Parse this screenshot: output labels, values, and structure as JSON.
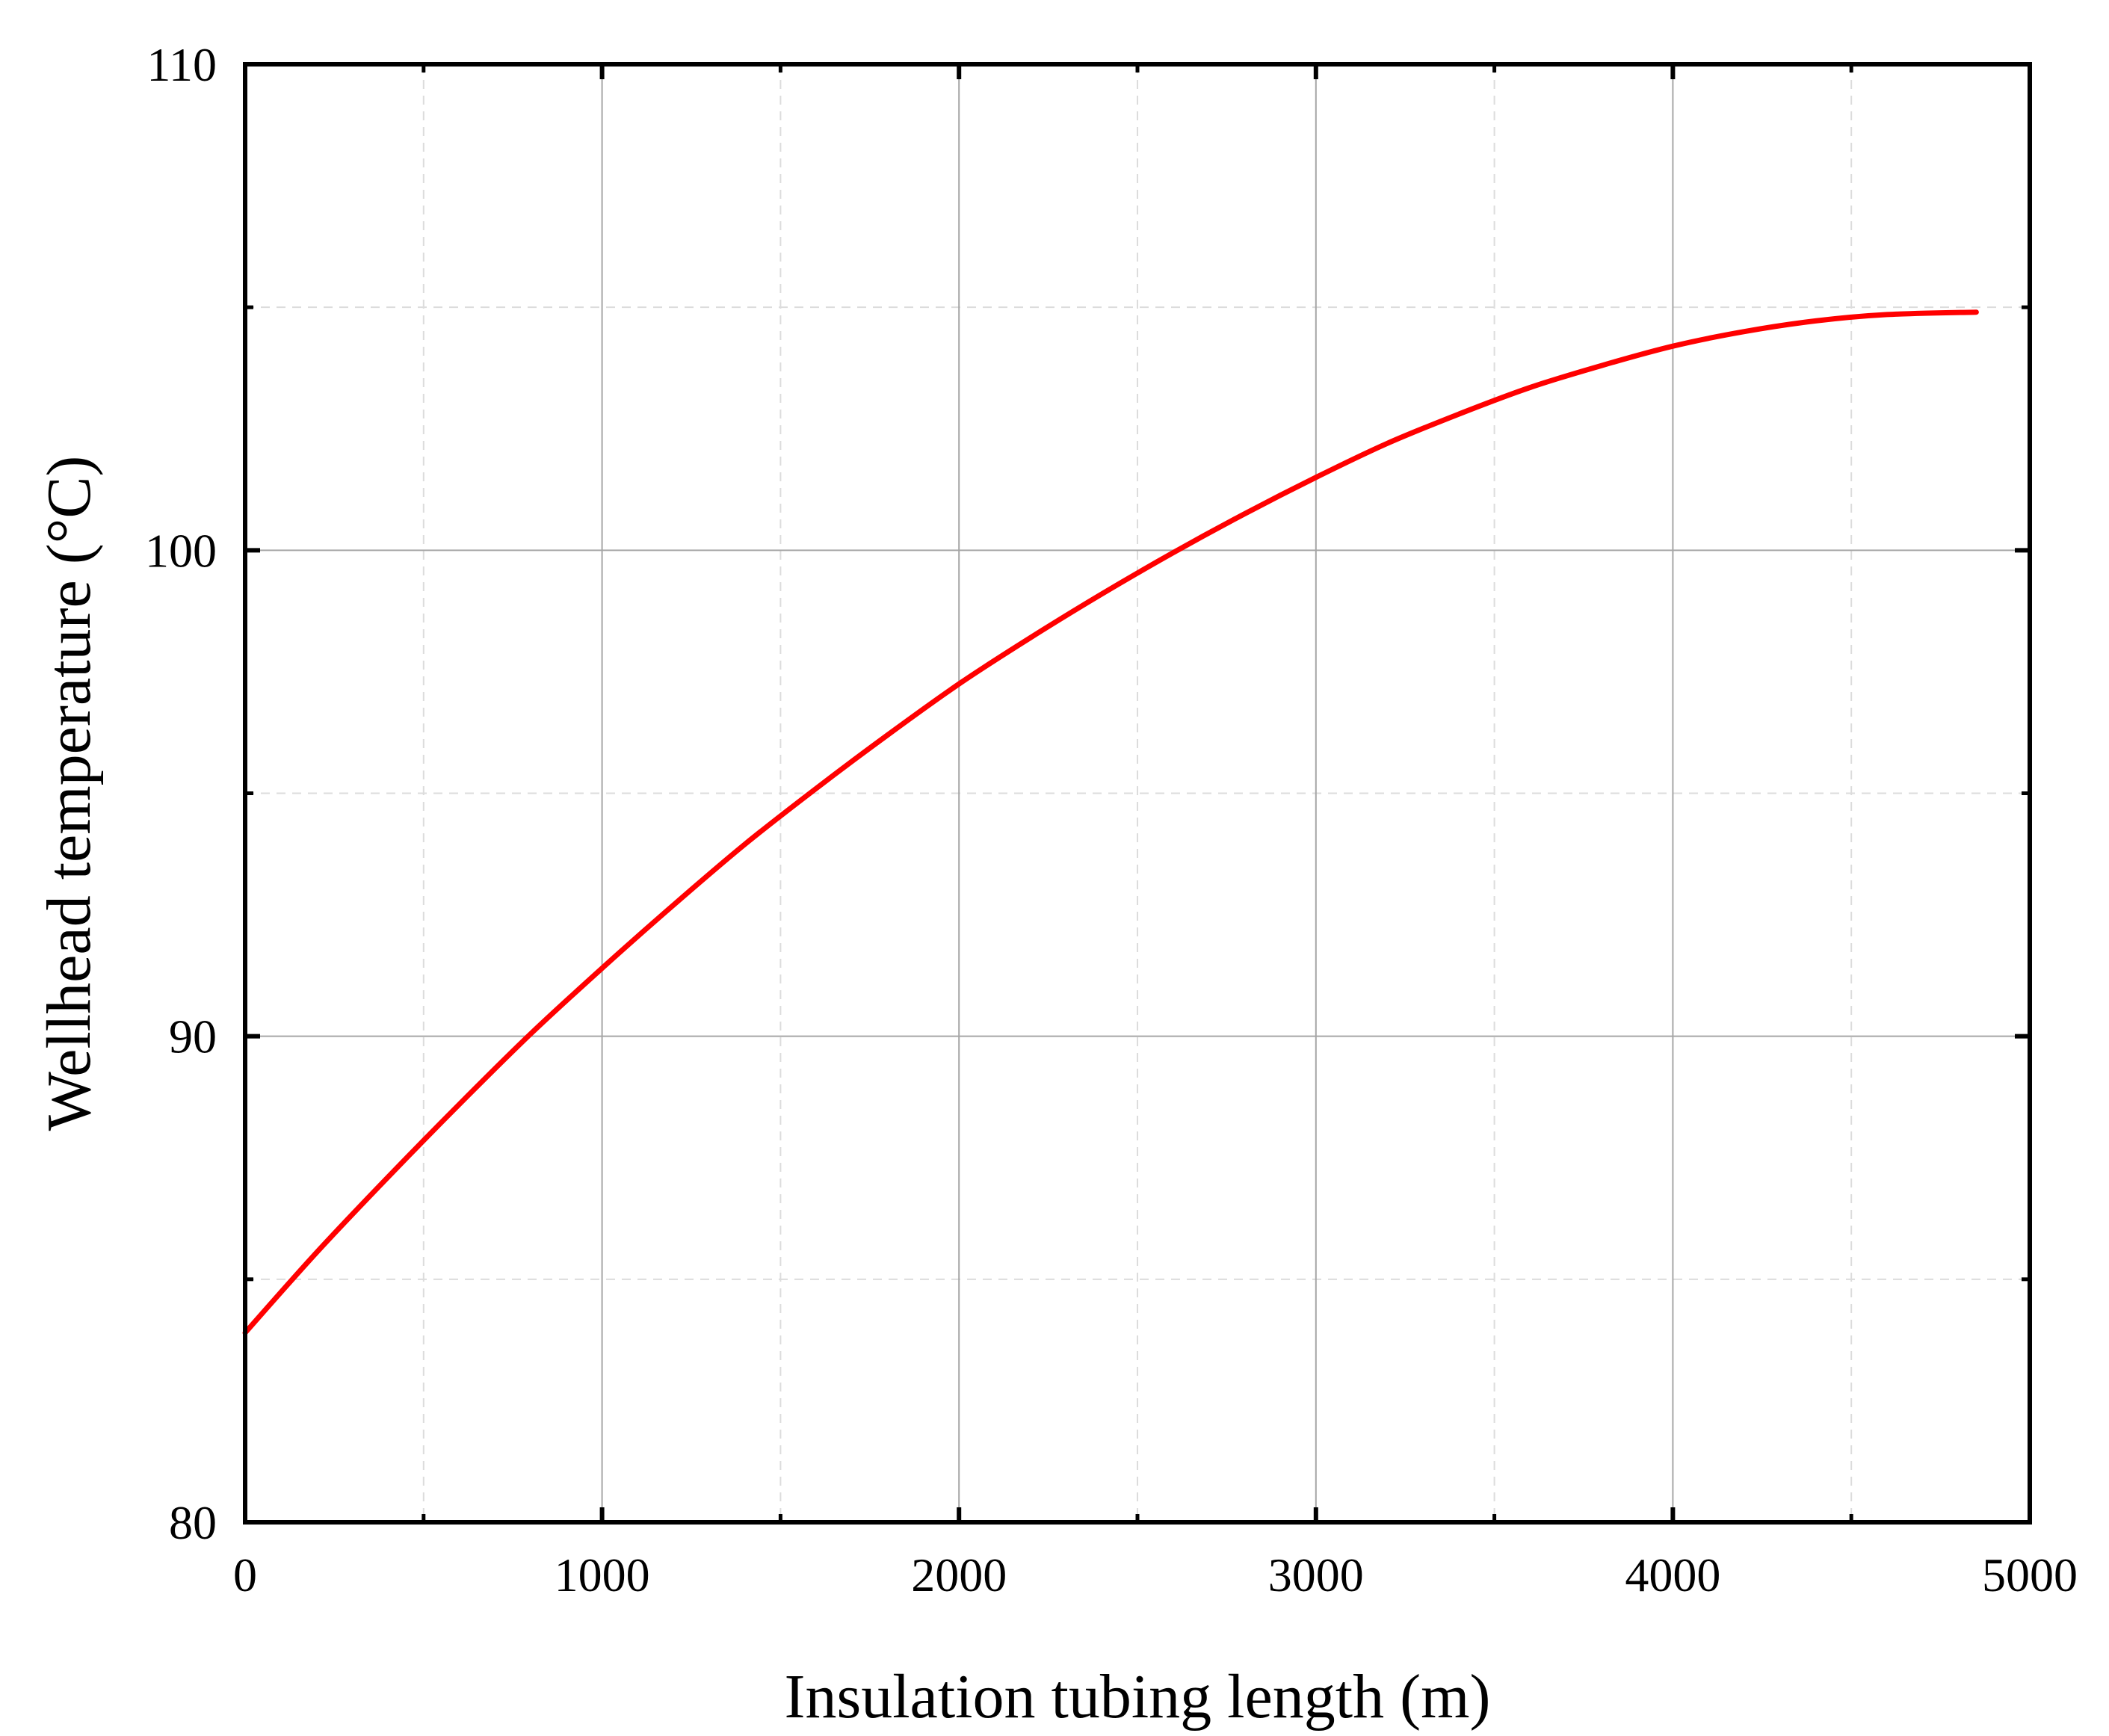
{
  "chart_data": {
    "type": "line",
    "title": "",
    "xlabel": "Insulation tubing length (m)",
    "ylabel": "Wellhead temperature (°C)",
    "xlim": [
      0,
      5000
    ],
    "ylim": [
      80,
      110
    ],
    "x_ticks": [
      "0",
      "1000",
      "2000",
      "3000",
      "4000",
      "5000"
    ],
    "y_ticks": [
      "80",
      "90",
      "100",
      "110"
    ],
    "x_minor_ticks": [
      500,
      1500,
      2500,
      3500,
      4500
    ],
    "y_minor_ticks": [
      85,
      95,
      105
    ],
    "grid": true,
    "legend": "none",
    "colors": {
      "line": "#ff0000",
      "axes": "#000000",
      "major_grid": "#a6a6a6",
      "minor_grid": "#dcdcdc"
    },
    "series": [
      {
        "x": [
          0,
          200,
          400,
          600,
          800,
          1000,
          1200,
          1400,
          1600,
          1800,
          2000,
          2200,
          2400,
          2600,
          2800,
          3000,
          3200,
          3400,
          3600,
          3800,
          4000,
          4200,
          4400,
          4600,
          4850
        ],
        "values": [
          83.9,
          85.55,
          87.1,
          88.6,
          90.05,
          91.4,
          92.7,
          93.95,
          95.1,
          96.2,
          97.25,
          98.2,
          99.1,
          99.95,
          100.75,
          101.5,
          102.2,
          102.8,
          103.35,
          103.8,
          104.2,
          104.5,
          104.72,
          104.85,
          104.9
        ]
      }
    ]
  }
}
